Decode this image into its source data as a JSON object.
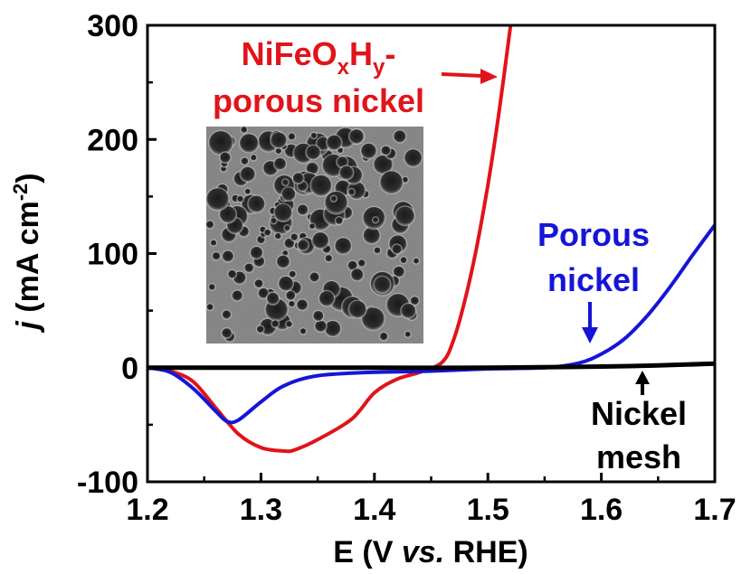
{
  "chart_data": {
    "type": "line",
    "xlabel": {
      "prefix": "E (V ",
      "italic": "vs.",
      "suffix": " RHE)"
    },
    "ylabel": {
      "italic": "j",
      "main": " (mA cm",
      "sup": "-2",
      "end": ")"
    },
    "xlim": [
      1.2,
      1.7
    ],
    "ylim": [
      -100,
      300
    ],
    "xticks": [
      1.2,
      1.3,
      1.4,
      1.5,
      1.6,
      1.7
    ],
    "xtick_labels": [
      "1.2",
      "1.3",
      "1.4",
      "1.5",
      "1.6",
      "1.7"
    ],
    "yticks": [
      -100,
      0,
      100,
      200,
      300
    ],
    "ytick_labels": [
      "-100",
      "0",
      "100",
      "200",
      "300"
    ],
    "grid": false,
    "legend": "none",
    "series": [
      {
        "color": "#e0141a",
        "x": [
          1.2,
          1.22,
          1.24,
          1.26,
          1.28,
          1.3,
          1.32,
          1.33,
          1.35,
          1.38,
          1.4,
          1.42,
          1.44,
          1.46,
          1.47,
          1.48,
          1.49,
          1.5,
          1.51,
          1.52
        ],
        "y": [
          0,
          -3,
          -12,
          -35,
          -58,
          -70,
          -73,
          -72,
          -63,
          -45,
          -22,
          -10,
          -4,
          5,
          25,
          60,
          105,
          160,
          225,
          300
        ]
      },
      {
        "color": "#1515d8",
        "x": [
          1.2,
          1.22,
          1.24,
          1.26,
          1.27,
          1.28,
          1.3,
          1.32,
          1.35,
          1.4,
          1.45,
          1.5,
          1.55,
          1.58,
          1.6,
          1.62,
          1.64,
          1.66,
          1.68,
          1.7
        ],
        "y": [
          0,
          -4,
          -18,
          -38,
          -47,
          -46,
          -30,
          -16,
          -7,
          -4,
          -3,
          -1,
          0,
          4,
          12,
          25,
          45,
          70,
          98,
          125
        ]
      },
      {
        "color": "#000000",
        "x": [
          1.2,
          1.3,
          1.4,
          1.5,
          1.6,
          1.65,
          1.7
        ],
        "y": [
          0,
          0,
          0,
          0,
          1,
          2,
          3.5
        ]
      }
    ],
    "annotations": [
      {
        "color": "#e0141a",
        "line1": {
          "a": "NiFeO",
          "s1": "x",
          "b": "H",
          "s2": "y",
          "c": "-"
        },
        "line2": "porous nickel"
      },
      {
        "color": "#1515d8",
        "line1": "Porous",
        "line2": "nickel"
      },
      {
        "color": "#000000",
        "line1": "Nickel",
        "line2": "mesh"
      }
    ]
  }
}
